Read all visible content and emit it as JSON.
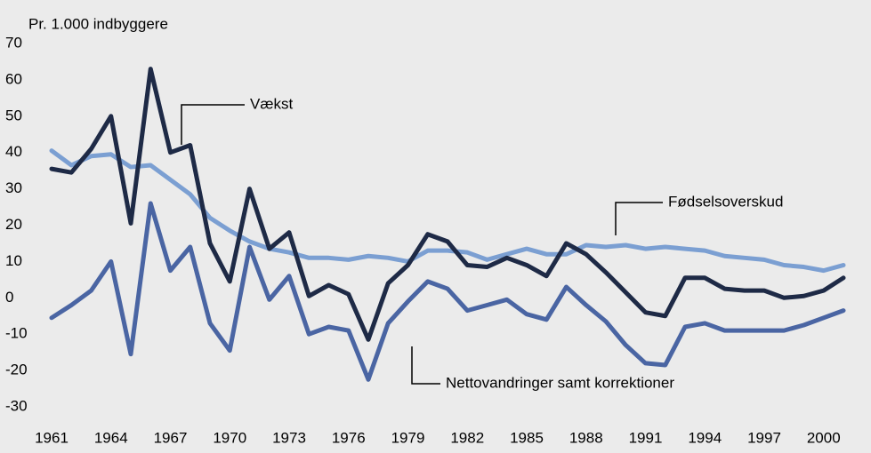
{
  "chart_data": {
    "type": "line",
    "y_label": "Pr. 1.000  indbyggere",
    "x": [
      1961,
      1962,
      1963,
      1964,
      1965,
      1966,
      1967,
      1968,
      1969,
      1970,
      1971,
      1972,
      1973,
      1974,
      1975,
      1976,
      1977,
      1978,
      1979,
      1980,
      1981,
      1982,
      1983,
      1984,
      1985,
      1986,
      1987,
      1988,
      1989,
      1990,
      1991,
      1992,
      1993,
      1994,
      1995,
      1996,
      1997,
      1998,
      1999,
      2000,
      2001
    ],
    "series": [
      {
        "name": "Fødselsoverskud",
        "color": "#7b9fd2",
        "values": [
          40.5,
          36.5,
          39,
          39.5,
          36,
          36.5,
          32.5,
          28.5,
          22,
          18.5,
          15.5,
          13.5,
          12.5,
          11,
          11,
          10.5,
          11.5,
          11,
          10,
          13,
          13,
          12.5,
          10.5,
          12,
          13.5,
          12,
          12,
          14.5,
          14,
          14.5,
          13.5,
          14,
          13.5,
          13,
          11.5,
          11,
          10.5,
          9,
          8.5,
          7.5,
          9
        ]
      },
      {
        "name": "Nettovandringer samt korrektioner",
        "color": "#4a65a3",
        "values": [
          -5.5,
          -2,
          2,
          10,
          -15.5,
          26,
          7.5,
          14,
          -7,
          -14.5,
          14,
          -0.5,
          6,
          -10,
          -8,
          -9,
          -22.5,
          -7,
          -1,
          4.5,
          2.5,
          -3.5,
          -2,
          -0.5,
          -4.5,
          -6,
          3,
          -2,
          -6.5,
          -13,
          -18,
          -18.5,
          -8,
          -7,
          -9,
          -9,
          -9,
          -9,
          -7.5,
          -5.5,
          -3.5
        ]
      },
      {
        "name": "Vækst",
        "color": "#1e2a46",
        "values": [
          35.5,
          34.5,
          41,
          50,
          20.5,
          63,
          40,
          42,
          15,
          4.5,
          30,
          13.5,
          18,
          0.5,
          3.5,
          1,
          -11.5,
          4,
          9,
          17.5,
          15.5,
          9,
          8.5,
          11,
          9,
          6,
          15,
          12,
          7,
          1.5,
          -4,
          -5,
          5.5,
          5.5,
          2.5,
          2,
          2,
          0,
          0.5,
          2,
          5.5
        ]
      }
    ],
    "xlim": [
      1961,
      2001
    ],
    "xticks": [
      1961,
      1964,
      1967,
      1970,
      1973,
      1976,
      1979,
      1982,
      1985,
      1988,
      1991,
      1994,
      1997,
      2000
    ],
    "ylim": [
      -30,
      70
    ],
    "yticks": [
      -30,
      -20,
      -10,
      0,
      10,
      20,
      30,
      40,
      50,
      60,
      70
    ],
    "grid": false
  }
}
